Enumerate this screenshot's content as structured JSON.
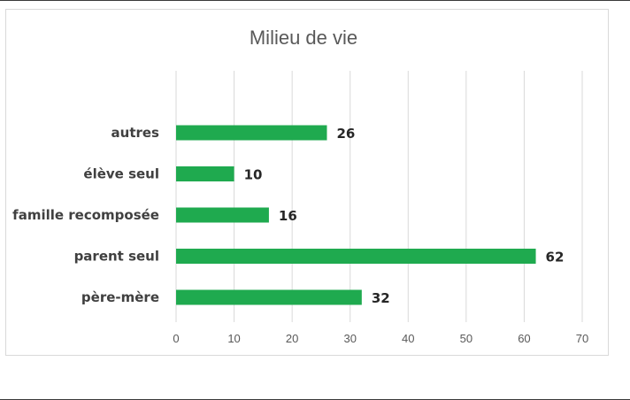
{
  "chart_data": {
    "type": "bar",
    "orientation": "horizontal",
    "title": "Milieu de vie",
    "categories": [
      "autres",
      "élève seul",
      "famille recomposée",
      "parent seul",
      "père-mère"
    ],
    "values": [
      26,
      10,
      16,
      62,
      32
    ],
    "xlim": [
      0,
      70
    ],
    "ticks": [
      "0",
      "10",
      "20",
      "30",
      "40",
      "50",
      "60",
      "70"
    ],
    "grid": true,
    "data_labels": true,
    "bar_color": "#1faa4f",
    "xlabel": "",
    "ylabel": ""
  }
}
